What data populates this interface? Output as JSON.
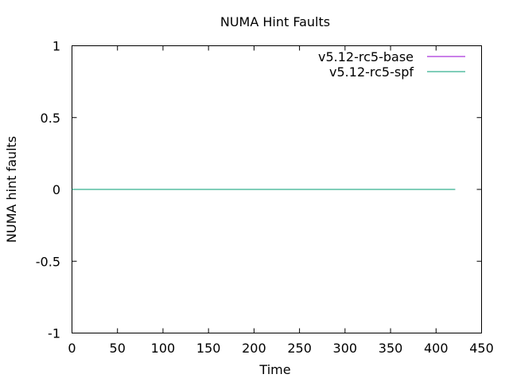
{
  "chart_data": {
    "type": "line",
    "title": "NUMA Hint Faults",
    "xlabel": "Time",
    "ylabel": "NUMA hint faults",
    "xlim": [
      0,
      450
    ],
    "ylim": [
      -1,
      1
    ],
    "xticks": [
      0,
      50,
      100,
      150,
      200,
      250,
      300,
      350,
      400,
      450
    ],
    "yticks": [
      -1,
      -0.5,
      0,
      0.5,
      1
    ],
    "xtick_labels": [
      "0",
      "50",
      "100",
      "150",
      "200",
      "250",
      "300",
      "350",
      "400",
      "450"
    ],
    "ytick_labels": [
      "-1",
      "-0.5",
      "0",
      "0.5",
      "1"
    ],
    "legend_position": "top-right",
    "grid": false,
    "series": [
      {
        "name": "v5.12-rc5-base",
        "color": "#9400d3",
        "x": [
          0,
          421
        ],
        "y": [
          0,
          0
        ]
      },
      {
        "name": "v5.12-rc5-spf",
        "color": "#009e73",
        "x": [
          0,
          421
        ],
        "y": [
          0,
          0
        ]
      }
    ]
  }
}
